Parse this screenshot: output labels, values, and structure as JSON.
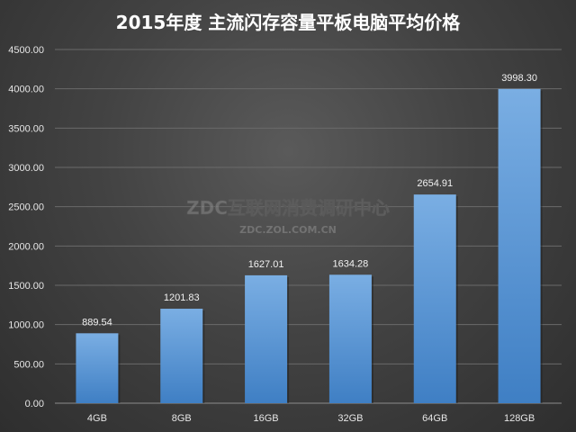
{
  "chart_data": {
    "type": "bar",
    "title": "2015年度 主流闪存容量平板电脑平均价格",
    "categories": [
      "4GB",
      "8GB",
      "16GB",
      "32GB",
      "64GB",
      "128GB"
    ],
    "values": [
      889.54,
      1201.83,
      1627.01,
      1634.28,
      2654.91,
      3998.3
    ],
    "value_labels": [
      "889.54",
      "1201.83",
      "1627.01",
      "1634.28",
      "2654.91",
      "3998.30"
    ],
    "xlabel": "",
    "ylabel": "",
    "ylim": [
      0,
      4500
    ],
    "y_ticks": [
      "0.00",
      "500.00",
      "1000.00",
      "1500.00",
      "2000.00",
      "2500.00",
      "3000.00",
      "3500.00",
      "4000.00",
      "4500.00"
    ],
    "grid": true,
    "legend": "none",
    "colors": {
      "bar_top": "#7aaee3",
      "bar_bottom": "#3f7fc4",
      "grid": "#6a6a6a",
      "axis": "#8c8c8c"
    }
  },
  "watermark": {
    "main": "ZDC互联网消费调研中心",
    "sub": "ZDC.ZOL.COM.CN"
  }
}
